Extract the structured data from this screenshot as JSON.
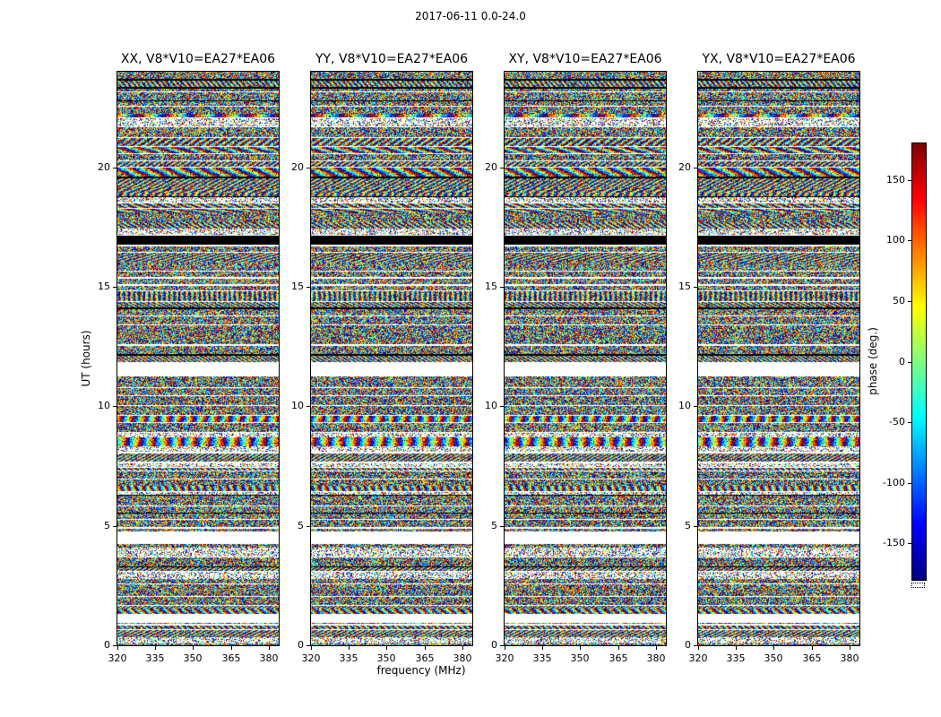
{
  "chart_data": {
    "type": "heatmap",
    "title": "2017-06-11 0.0-24.0",
    "panels": [
      {
        "title": "XX, V8*V10=EA27*EA06"
      },
      {
        "title": "YY, V8*V10=EA27*EA06"
      },
      {
        "title": "XY, V8*V10=EA27*EA06"
      },
      {
        "title": "YX, V8*V10=EA27*EA06"
      }
    ],
    "xlabel": "frequency (MHz)",
    "ylabel": "UT (hours)",
    "xlim": [
      320,
      384
    ],
    "ylim": [
      0,
      24
    ],
    "x_ticks": [
      320,
      335,
      350,
      365,
      380
    ],
    "y_ticks": [
      0,
      5,
      10,
      15,
      20
    ],
    "colorbar": {
      "label": "phase (deg.)",
      "ticks": [
        150,
        100,
        50,
        0,
        -50,
        -100,
        -150
      ],
      "vmin": -180,
      "vmax": 180,
      "colormap": "jet"
    },
    "data_description": "Interferometric visibility phase (deg.) versus frequency and UT for baseline V8*V10=EA27*EA06 on 2017-06-11; dense pseudo-random phase noise organized in horizontal scan blocks separated by thin white gaps, identical scan structure across the four polarization panels",
    "white_gaps_ut": [
      [
        0.95,
        1.3
      ],
      [
        4.25,
        4.75
      ],
      [
        11.3,
        11.85
      ]
    ],
    "black_bands_ut": [
      [
        16.78,
        17.12
      ]
    ],
    "noise_seed": 42
  }
}
